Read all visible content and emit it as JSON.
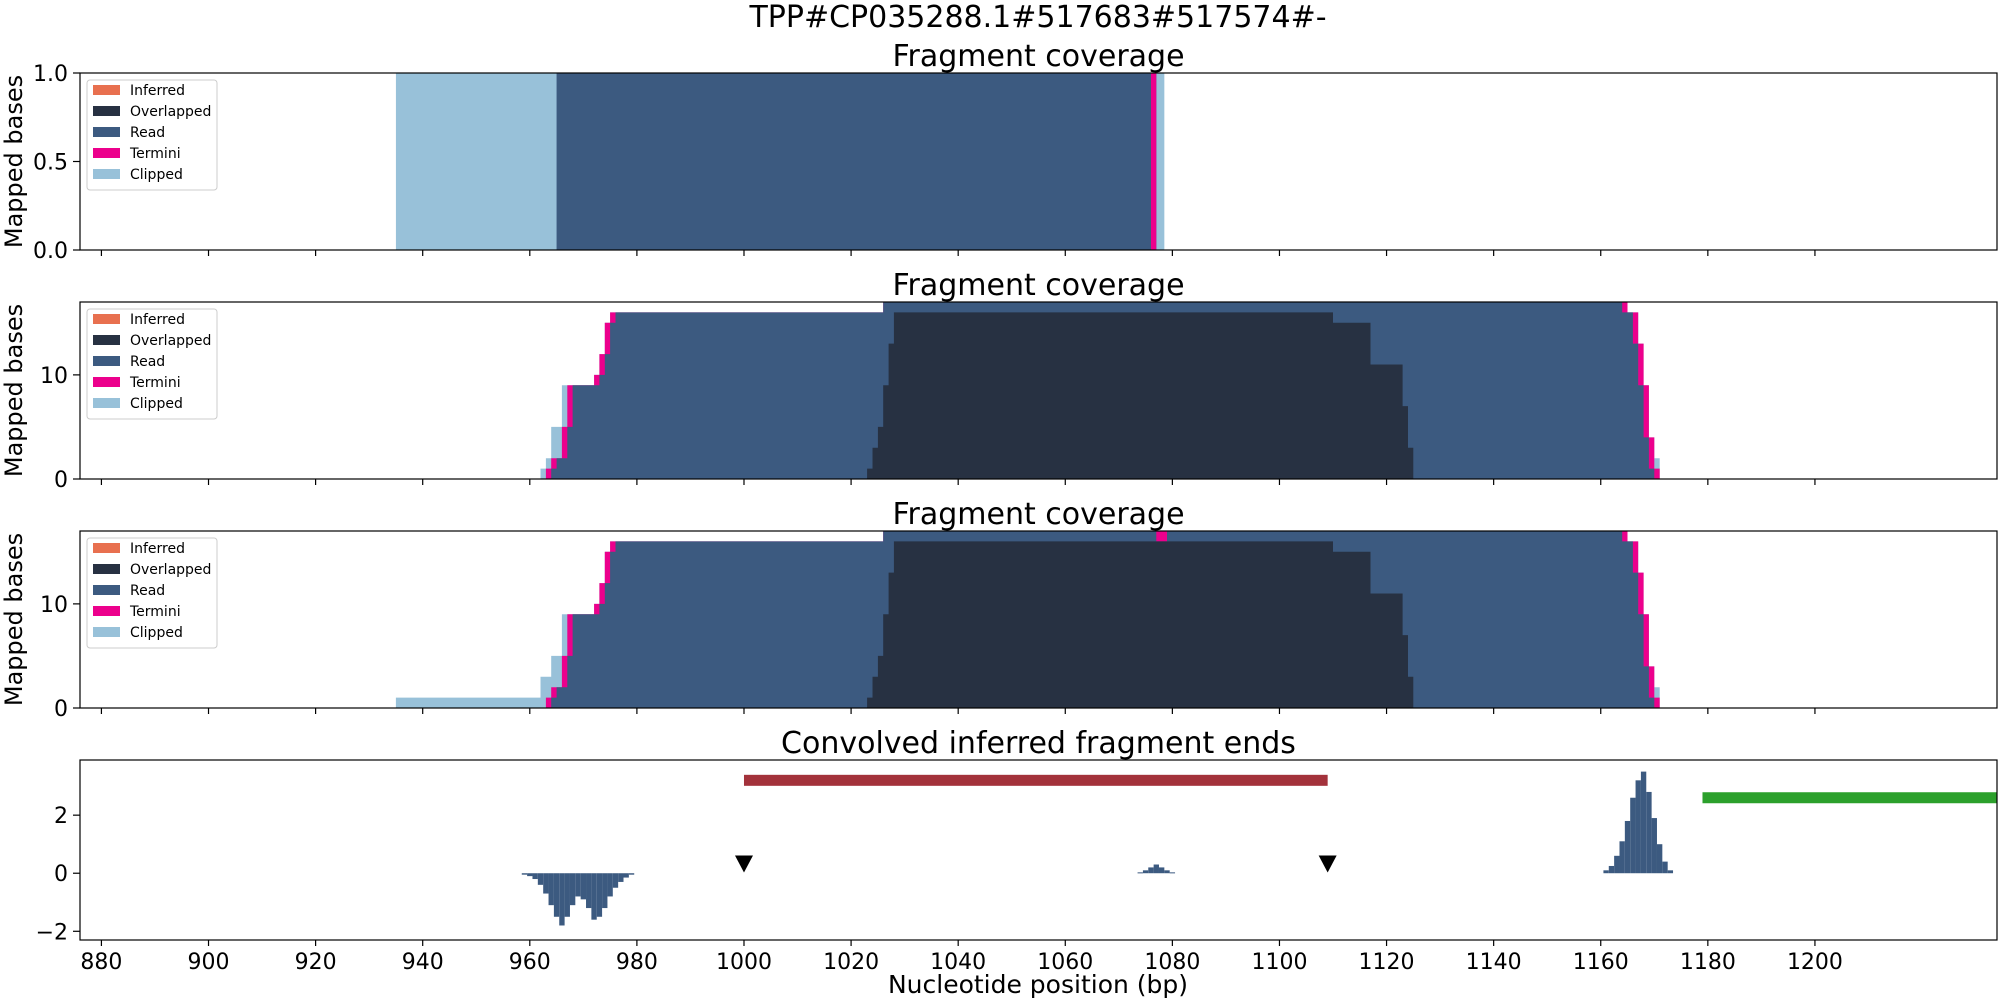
{
  "figure": {
    "suptitle": "TPP#CP035288.1#517683#517574#-",
    "xlabel": "Nucleotide position (bp)"
  },
  "colors": {
    "inferred": "#e8704f",
    "overlapped": "#273142",
    "read": "#3c5a80",
    "termini": "#ec008c",
    "clipped": "#98c1d9",
    "bar_red": "#a3323b",
    "bar_green": "#2ca02c",
    "marker": "#000000"
  },
  "legend": [
    "Inferred",
    "Overlapped",
    "Read",
    "Termini",
    "Clipped"
  ],
  "chart_data": [
    {
      "type": "area",
      "title": "Fragment coverage",
      "ylabel": "Mapped bases",
      "xlim": [
        876,
        1234
      ],
      "ylim": [
        0,
        1.0
      ],
      "yticks": [
        0.0,
        0.5,
        1.0
      ],
      "ytick_labels": [
        "0.0",
        "0.5",
        "1.0"
      ],
      "legend_position": "upper-left",
      "layers": [
        {
          "series": "clipped",
          "x0": 935,
          "x1": 1078.5,
          "y": 1
        },
        {
          "series": "read",
          "x0": 965,
          "x1": 1077,
          "y": 1
        },
        {
          "series": "termini",
          "x0": 1076,
          "x1": 1077,
          "y": 1
        }
      ]
    },
    {
      "type": "area",
      "title": "Fragment coverage",
      "ylabel": "Mapped bases",
      "xlim": [
        876,
        1234
      ],
      "ylim": [
        0,
        17
      ],
      "yticks": [
        0,
        10
      ],
      "ytick_labels": [
        "0",
        "10"
      ],
      "legend_position": "upper-left",
      "layers": [
        {
          "series": "clipped",
          "steps": [
            [
              962,
              1
            ],
            [
              963,
              2
            ],
            [
              964,
              5
            ],
            [
              966,
              9
            ],
            [
              972,
              10
            ],
            [
              973,
              12
            ],
            [
              974,
              15
            ],
            [
              975,
              16
            ],
            [
              1026,
              17
            ],
            [
              1165,
              16
            ],
            [
              1167,
              13
            ],
            [
              1168,
              9
            ],
            [
              1169,
              4
            ],
            [
              1170,
              2
            ],
            [
              1171,
              0
            ]
          ]
        },
        {
          "series": "termini",
          "steps": [
            [
              963,
              1
            ],
            [
              964,
              2
            ],
            [
              966,
              5
            ],
            [
              967,
              9
            ],
            [
              972,
              10
            ],
            [
              973,
              12
            ],
            [
              974,
              15
            ],
            [
              975,
              16
            ],
            [
              1026,
              17
            ],
            [
              1165,
              16
            ],
            [
              1167,
              13
            ],
            [
              1168,
              9
            ],
            [
              1169,
              4
            ],
            [
              1170,
              1
            ],
            [
              1171,
              0
            ]
          ]
        },
        {
          "series": "read",
          "steps": [
            [
              964,
              1
            ],
            [
              965,
              2
            ],
            [
              967,
              5
            ],
            [
              968,
              9
            ],
            [
              973,
              10
            ],
            [
              974,
              12
            ],
            [
              975,
              15
            ],
            [
              976,
              16
            ],
            [
              1026,
              17
            ],
            [
              1164,
              16
            ],
            [
              1166,
              13
            ],
            [
              1167,
              9
            ],
            [
              1168,
              4
            ],
            [
              1169,
              1
            ],
            [
              1170,
              0
            ]
          ]
        },
        {
          "series": "overlapped",
          "steps": [
            [
              1023,
              1
            ],
            [
              1024,
              3
            ],
            [
              1025,
              5
            ],
            [
              1026,
              9
            ],
            [
              1027,
              13
            ],
            [
              1028,
              16
            ],
            [
              1110,
              15
            ],
            [
              1117,
              11
            ],
            [
              1123,
              7
            ],
            [
              1124,
              3
            ],
            [
              1125,
              0
            ]
          ]
        }
      ]
    },
    {
      "type": "area",
      "title": "Fragment coverage",
      "ylabel": "Mapped bases",
      "xlim": [
        876,
        1234
      ],
      "ylim": [
        0,
        17
      ],
      "yticks": [
        0,
        10
      ],
      "ytick_labels": [
        "0",
        "10"
      ],
      "legend_position": "upper-left",
      "layers": [
        {
          "series": "clipped",
          "steps": [
            [
              935,
              1
            ],
            [
              962,
              3
            ],
            [
              964,
              5
            ],
            [
              966,
              9
            ],
            [
              972,
              10
            ],
            [
              973,
              12
            ],
            [
              974,
              15
            ],
            [
              975,
              16
            ],
            [
              1026,
              17
            ],
            [
              1165,
              16
            ],
            [
              1167,
              13
            ],
            [
              1168,
              9
            ],
            [
              1169,
              4
            ],
            [
              1170,
              2
            ],
            [
              1171,
              0
            ]
          ]
        },
        {
          "series": "termini",
          "steps": [
            [
              963,
              1
            ],
            [
              964,
              2
            ],
            [
              966,
              5
            ],
            [
              967,
              9
            ],
            [
              972,
              10
            ],
            [
              973,
              12
            ],
            [
              974,
              15
            ],
            [
              975,
              16
            ],
            [
              1026,
              17
            ],
            [
              1165,
              16
            ],
            [
              1167,
              13
            ],
            [
              1168,
              9
            ],
            [
              1169,
              4
            ],
            [
              1170,
              1
            ],
            [
              1171,
              0
            ]
          ]
        },
        {
          "series": "read",
          "steps": [
            [
              964,
              1
            ],
            [
              965,
              2
            ],
            [
              967,
              5
            ],
            [
              968,
              9
            ],
            [
              973,
              10
            ],
            [
              974,
              12
            ],
            [
              975,
              15
            ],
            [
              976,
              16
            ],
            [
              1026,
              17
            ],
            [
              1077,
              16
            ],
            [
              1079,
              17
            ],
            [
              1164,
              16
            ],
            [
              1166,
              13
            ],
            [
              1167,
              9
            ],
            [
              1168,
              4
            ],
            [
              1169,
              1
            ],
            [
              1170,
              0
            ]
          ]
        },
        {
          "series": "overlapped",
          "steps": [
            [
              1023,
              1
            ],
            [
              1024,
              3
            ],
            [
              1025,
              5
            ],
            [
              1026,
              9
            ],
            [
              1027,
              13
            ],
            [
              1028,
              16
            ],
            [
              1110,
              15
            ],
            [
              1117,
              11
            ],
            [
              1123,
              7
            ],
            [
              1124,
              3
            ],
            [
              1125,
              0
            ]
          ]
        }
      ]
    },
    {
      "type": "bar",
      "title": "Convolved inferred fragment ends",
      "xlabel": "Nucleotide position (bp)",
      "xlim": [
        876,
        1234
      ],
      "ylim": [
        -2.3,
        3.9
      ],
      "yticks": [
        -2,
        0,
        2
      ],
      "ytick_labels": [
        "−2",
        "0",
        "2"
      ],
      "xticks": [
        880,
        900,
        920,
        940,
        960,
        980,
        1000,
        1020,
        1040,
        1060,
        1080,
        1100,
        1120,
        1140,
        1160,
        1180,
        1200
      ],
      "xtick_labels": [
        "880",
        "900",
        "920",
        "940",
        "960",
        "980",
        "1000",
        "1020",
        "1040",
        "1060",
        "1080",
        "1100",
        "1120",
        "1140",
        "1160",
        "1180",
        "1200"
      ],
      "histogram": [
        {
          "x": 959,
          "y": -0.05
        },
        {
          "x": 960,
          "y": -0.1
        },
        {
          "x": 961,
          "y": -0.2
        },
        {
          "x": 962,
          "y": -0.4
        },
        {
          "x": 963,
          "y": -0.7
        },
        {
          "x": 964,
          "y": -1.1
        },
        {
          "x": 965,
          "y": -1.5
        },
        {
          "x": 966,
          "y": -1.8
        },
        {
          "x": 967,
          "y": -1.5
        },
        {
          "x": 968,
          "y": -1.1
        },
        {
          "x": 969,
          "y": -0.8
        },
        {
          "x": 970,
          "y": -0.9
        },
        {
          "x": 971,
          "y": -1.2
        },
        {
          "x": 972,
          "y": -1.6
        },
        {
          "x": 973,
          "y": -1.5
        },
        {
          "x": 974,
          "y": -1.2
        },
        {
          "x": 975,
          "y": -0.8
        },
        {
          "x": 976,
          "y": -0.5
        },
        {
          "x": 977,
          "y": -0.3
        },
        {
          "x": 978,
          "y": -0.15
        },
        {
          "x": 979,
          "y": -0.05
        },
        {
          "x": 1074,
          "y": 0.03
        },
        {
          "x": 1075,
          "y": 0.1
        },
        {
          "x": 1076,
          "y": 0.2
        },
        {
          "x": 1077,
          "y": 0.3
        },
        {
          "x": 1078,
          "y": 0.2
        },
        {
          "x": 1079,
          "y": 0.1
        },
        {
          "x": 1080,
          "y": 0.03
        },
        {
          "x": 1161,
          "y": 0.1
        },
        {
          "x": 1162,
          "y": 0.25
        },
        {
          "x": 1163,
          "y": 0.6
        },
        {
          "x": 1164,
          "y": 1.1
        },
        {
          "x": 1165,
          "y": 1.8
        },
        {
          "x": 1166,
          "y": 2.6
        },
        {
          "x": 1167,
          "y": 3.2
        },
        {
          "x": 1168,
          "y": 3.5
        },
        {
          "x": 1169,
          "y": 2.8
        },
        {
          "x": 1170,
          "y": 1.9
        },
        {
          "x": 1171,
          "y": 1.0
        },
        {
          "x": 1172,
          "y": 0.4
        },
        {
          "x": 1173,
          "y": 0.1
        }
      ],
      "segments": [
        {
          "x0": 1000,
          "x1": 1109,
          "y": 3.2,
          "color": "bar_red"
        },
        {
          "x0": 1179,
          "x1": 1234,
          "y": 2.6,
          "color": "bar_green"
        }
      ],
      "markers": [
        {
          "x": 1000,
          "y": 0.3,
          "shape": "triangle-down"
        },
        {
          "x": 1109,
          "y": 0.3,
          "shape": "triangle-down"
        }
      ]
    }
  ]
}
